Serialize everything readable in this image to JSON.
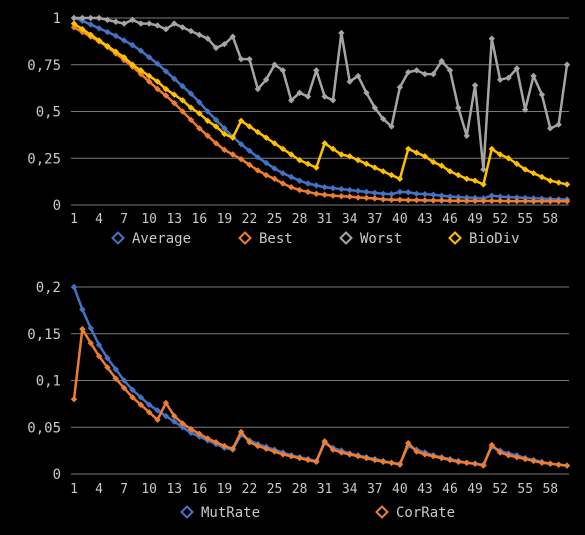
{
  "colors": {
    "background": "#000000",
    "grid": "#7a7a7a",
    "axis_text": "#c9c9c9",
    "average": "#4472C4",
    "best": "#ED7D31",
    "worst": "#A5A5A5",
    "biodiv": "#FFC000",
    "mutrate": "#4472C4",
    "corrate": "#ED7D31"
  },
  "chart_data": [
    {
      "type": "line",
      "title": "",
      "xlabel": "",
      "ylabel": "",
      "x": [
        1,
        2,
        3,
        4,
        5,
        6,
        7,
        8,
        9,
        10,
        11,
        12,
        13,
        14,
        15,
        16,
        17,
        18,
        19,
        20,
        21,
        22,
        23,
        24,
        25,
        26,
        27,
        28,
        29,
        30,
        31,
        32,
        33,
        34,
        35,
        36,
        37,
        38,
        39,
        40,
        41,
        42,
        43,
        44,
        45,
        46,
        47,
        48,
        49,
        50,
        51,
        52,
        53,
        54,
        55,
        56,
        57,
        58,
        59,
        60
      ],
      "x_tick_labels": [
        "1",
        "4",
        "7",
        "10",
        "13",
        "16",
        "19",
        "22",
        "25",
        "28",
        "31",
        "34",
        "37",
        "40",
        "43",
        "46",
        "49",
        "52",
        "55",
        "58"
      ],
      "y_tick_labels": [
        "0",
        "0,25",
        "0,5",
        "0,75",
        "1"
      ],
      "ylim": [
        0,
        1
      ],
      "grid": true,
      "legend": "bottom",
      "series": [
        {
          "name": "Average",
          "color_key": "average",
          "values": [
            1.0,
            0.985,
            0.965,
            0.945,
            0.925,
            0.905,
            0.88,
            0.855,
            0.825,
            0.79,
            0.755,
            0.715,
            0.675,
            0.635,
            0.595,
            0.55,
            0.5,
            0.455,
            0.41,
            0.365,
            0.325,
            0.29,
            0.255,
            0.225,
            0.195,
            0.17,
            0.15,
            0.13,
            0.115,
            0.105,
            0.095,
            0.09,
            0.085,
            0.08,
            0.075,
            0.07,
            0.065,
            0.06,
            0.058,
            0.07,
            0.068,
            0.06,
            0.058,
            0.055,
            0.05,
            0.045,
            0.042,
            0.04,
            0.038,
            0.036,
            0.05,
            0.045,
            0.042,
            0.04,
            0.038,
            0.036,
            0.034,
            0.032,
            0.03,
            0.03
          ]
        },
        {
          "name": "Best",
          "color_key": "best",
          "values": [
            0.95,
            0.925,
            0.9,
            0.875,
            0.845,
            0.81,
            0.775,
            0.74,
            0.7,
            0.66,
            0.62,
            0.585,
            0.545,
            0.5,
            0.455,
            0.41,
            0.37,
            0.33,
            0.295,
            0.27,
            0.245,
            0.215,
            0.185,
            0.16,
            0.14,
            0.115,
            0.095,
            0.08,
            0.07,
            0.06,
            0.055,
            0.05,
            0.047,
            0.045,
            0.04,
            0.038,
            0.035,
            0.03,
            0.028,
            0.028,
            0.026,
            0.026,
            0.025,
            0.024,
            0.024,
            0.023,
            0.023,
            0.022,
            0.022,
            0.022,
            0.022,
            0.022,
            0.021,
            0.021,
            0.021,
            0.02,
            0.02,
            0.02,
            0.02,
            0.02
          ]
        },
        {
          "name": "Worst",
          "color_key": "worst",
          "values": [
            1.0,
            1.0,
            1.0,
            1.0,
            0.99,
            0.98,
            0.97,
            0.99,
            0.97,
            0.97,
            0.96,
            0.94,
            0.97,
            0.95,
            0.93,
            0.91,
            0.89,
            0.84,
            0.86,
            0.9,
            0.78,
            0.78,
            0.62,
            0.67,
            0.75,
            0.72,
            0.56,
            0.6,
            0.58,
            0.72,
            0.58,
            0.56,
            0.92,
            0.66,
            0.69,
            0.6,
            0.52,
            0.46,
            0.42,
            0.63,
            0.71,
            0.72,
            0.7,
            0.7,
            0.77,
            0.72,
            0.52,
            0.37,
            0.64,
            0.19,
            0.89,
            0.67,
            0.68,
            0.73,
            0.51,
            0.69,
            0.59,
            0.41,
            0.43,
            0.75
          ]
        },
        {
          "name": "BioDiv",
          "color_key": "biodiv",
          "values": [
            0.97,
            0.94,
            0.91,
            0.88,
            0.85,
            0.82,
            0.79,
            0.75,
            0.72,
            0.69,
            0.66,
            0.62,
            0.59,
            0.56,
            0.52,
            0.49,
            0.45,
            0.42,
            0.38,
            0.36,
            0.45,
            0.42,
            0.39,
            0.36,
            0.33,
            0.3,
            0.27,
            0.24,
            0.22,
            0.2,
            0.33,
            0.3,
            0.27,
            0.26,
            0.24,
            0.22,
            0.2,
            0.18,
            0.16,
            0.14,
            0.3,
            0.28,
            0.26,
            0.23,
            0.21,
            0.18,
            0.16,
            0.14,
            0.13,
            0.11,
            0.3,
            0.27,
            0.25,
            0.22,
            0.19,
            0.17,
            0.15,
            0.13,
            0.12,
            0.11
          ]
        }
      ]
    },
    {
      "type": "line",
      "title": "",
      "xlabel": "",
      "ylabel": "",
      "x": [
        1,
        2,
        3,
        4,
        5,
        6,
        7,
        8,
        9,
        10,
        11,
        12,
        13,
        14,
        15,
        16,
        17,
        18,
        19,
        20,
        21,
        22,
        23,
        24,
        25,
        26,
        27,
        28,
        29,
        30,
        31,
        32,
        33,
        34,
        35,
        36,
        37,
        38,
        39,
        40,
        41,
        42,
        43,
        44,
        45,
        46,
        47,
        48,
        49,
        50,
        51,
        52,
        53,
        54,
        55,
        56,
        57,
        58,
        59,
        60
      ],
      "x_tick_labels": [
        "1",
        "4",
        "7",
        "10",
        "13",
        "16",
        "19",
        "22",
        "25",
        "28",
        "31",
        "34",
        "37",
        "40",
        "43",
        "46",
        "49",
        "52",
        "55",
        "58"
      ],
      "y_tick_labels": [
        "0",
        "0,05",
        "0,1",
        "0,15",
        "0,2"
      ],
      "ylim": [
        0,
        0.2
      ],
      "grid": true,
      "legend": "bottom",
      "series": [
        {
          "name": "MutRate",
          "color_key": "mutrate",
          "values": [
            0.2,
            0.176,
            0.156,
            0.138,
            0.124,
            0.112,
            0.1,
            0.09,
            0.082,
            0.074,
            0.068,
            0.062,
            0.056,
            0.05,
            0.044,
            0.04,
            0.036,
            0.032,
            0.028,
            0.026,
            0.042,
            0.036,
            0.032,
            0.029,
            0.026,
            0.023,
            0.02,
            0.018,
            0.016,
            0.014,
            0.033,
            0.028,
            0.025,
            0.022,
            0.02,
            0.018,
            0.016,
            0.014,
            0.012,
            0.011,
            0.03,
            0.026,
            0.023,
            0.02,
            0.018,
            0.016,
            0.014,
            0.012,
            0.011,
            0.01,
            0.029,
            0.025,
            0.022,
            0.02,
            0.017,
            0.015,
            0.013,
            0.011,
            0.01,
            0.009
          ]
        },
        {
          "name": "CorRate",
          "color_key": "corrate",
          "values": [
            0.08,
            0.155,
            0.14,
            0.126,
            0.114,
            0.102,
            0.092,
            0.082,
            0.074,
            0.066,
            0.058,
            0.076,
            0.062,
            0.054,
            0.048,
            0.043,
            0.038,
            0.034,
            0.03,
            0.027,
            0.045,
            0.034,
            0.03,
            0.027,
            0.024,
            0.021,
            0.019,
            0.017,
            0.015,
            0.013,
            0.035,
            0.026,
            0.023,
            0.021,
            0.019,
            0.017,
            0.015,
            0.013,
            0.012,
            0.01,
            0.033,
            0.024,
            0.021,
            0.019,
            0.017,
            0.015,
            0.013,
            0.012,
            0.011,
            0.009,
            0.031,
            0.023,
            0.02,
            0.018,
            0.016,
            0.014,
            0.012,
            0.011,
            0.01,
            0.009
          ]
        }
      ]
    }
  ]
}
